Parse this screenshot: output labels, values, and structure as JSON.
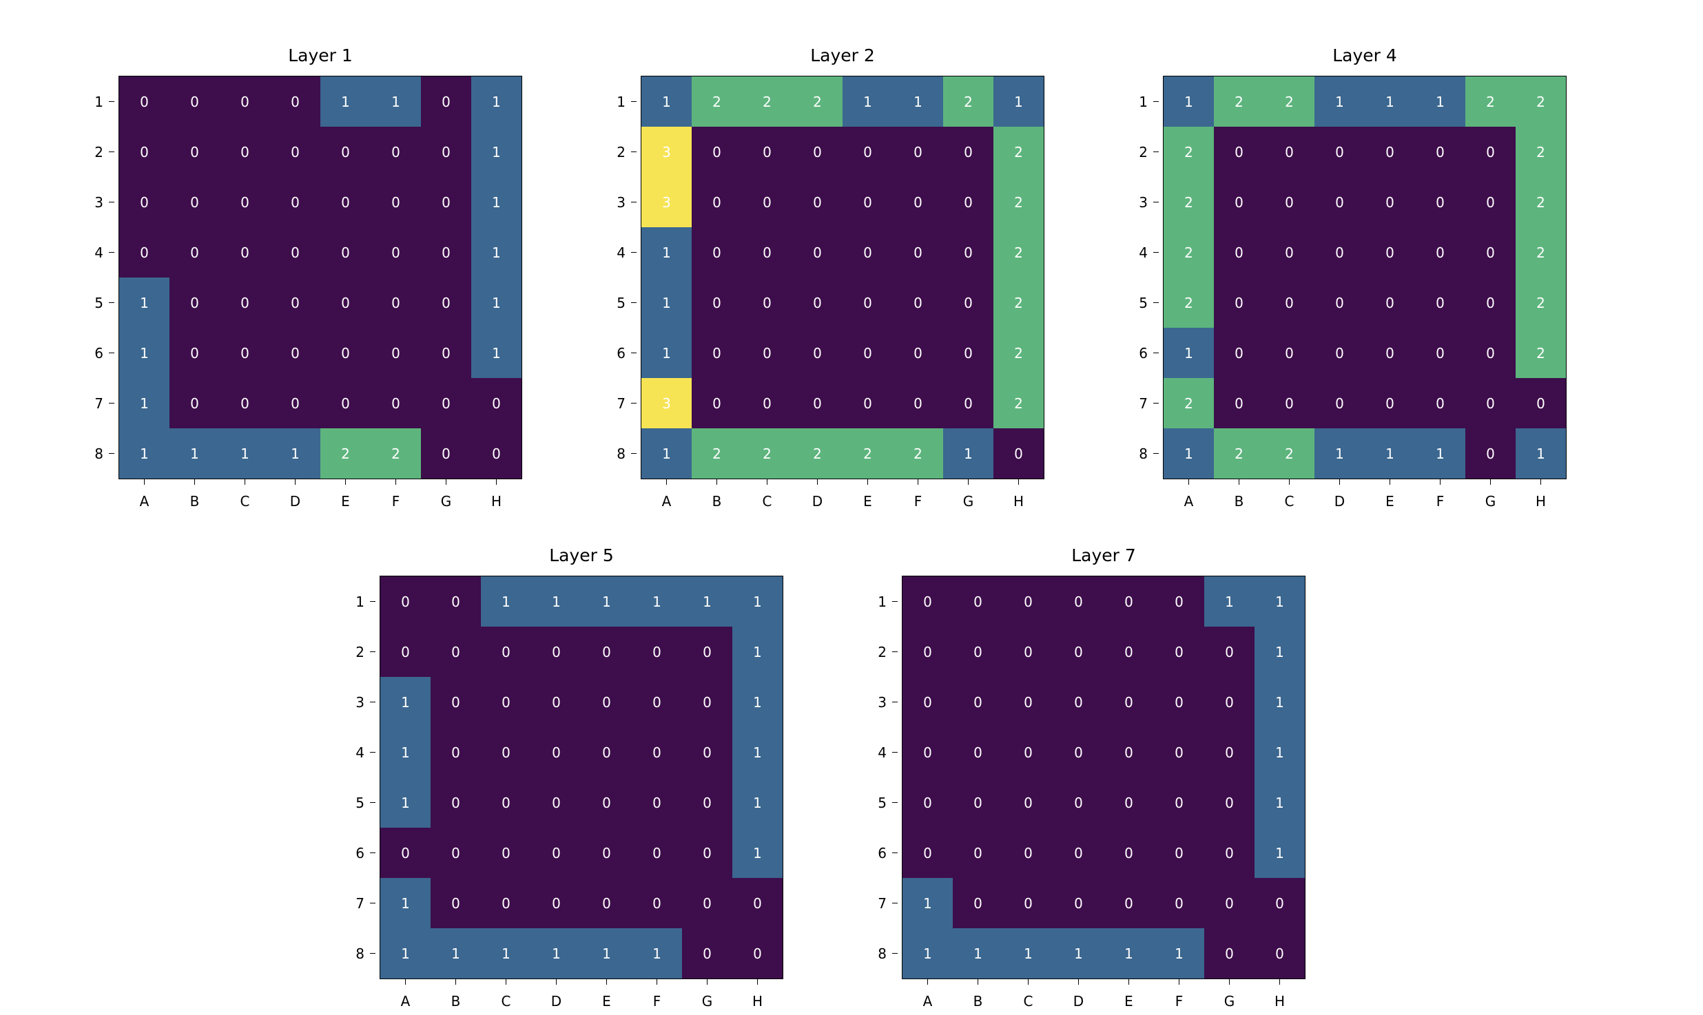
{
  "chart_data": [
    {
      "type": "heatmap",
      "title": "Layer 1",
      "x_categories": [
        "A",
        "B",
        "C",
        "D",
        "E",
        "F",
        "G",
        "H"
      ],
      "y_categories": [
        "1",
        "2",
        "3",
        "4",
        "5",
        "6",
        "7",
        "8"
      ],
      "values": [
        [
          0,
          0,
          0,
          0,
          1,
          1,
          0,
          1
        ],
        [
          0,
          0,
          0,
          0,
          0,
          0,
          0,
          1
        ],
        [
          0,
          0,
          0,
          0,
          0,
          0,
          0,
          1
        ],
        [
          0,
          0,
          0,
          0,
          0,
          0,
          0,
          1
        ],
        [
          1,
          0,
          0,
          0,
          0,
          0,
          0,
          1
        ],
        [
          1,
          0,
          0,
          0,
          0,
          0,
          0,
          1
        ],
        [
          1,
          0,
          0,
          0,
          0,
          0,
          0,
          0
        ],
        [
          1,
          1,
          1,
          1,
          2,
          2,
          0,
          0
        ]
      ]
    },
    {
      "type": "heatmap",
      "title": "Layer 2",
      "x_categories": [
        "A",
        "B",
        "C",
        "D",
        "E",
        "F",
        "G",
        "H"
      ],
      "y_categories": [
        "1",
        "2",
        "3",
        "4",
        "5",
        "6",
        "7",
        "8"
      ],
      "values": [
        [
          1,
          2,
          2,
          2,
          1,
          1,
          2,
          1
        ],
        [
          3,
          0,
          0,
          0,
          0,
          0,
          0,
          2
        ],
        [
          3,
          0,
          0,
          0,
          0,
          0,
          0,
          2
        ],
        [
          1,
          0,
          0,
          0,
          0,
          0,
          0,
          2
        ],
        [
          1,
          0,
          0,
          0,
          0,
          0,
          0,
          2
        ],
        [
          1,
          0,
          0,
          0,
          0,
          0,
          0,
          2
        ],
        [
          3,
          0,
          0,
          0,
          0,
          0,
          0,
          2
        ],
        [
          1,
          2,
          2,
          2,
          2,
          2,
          1,
          0
        ]
      ]
    },
    {
      "type": "heatmap",
      "title": "Layer 4",
      "x_categories": [
        "A",
        "B",
        "C",
        "D",
        "E",
        "F",
        "G",
        "H"
      ],
      "y_categories": [
        "1",
        "2",
        "3",
        "4",
        "5",
        "6",
        "7",
        "8"
      ],
      "values": [
        [
          1,
          2,
          2,
          1,
          1,
          1,
          2,
          2
        ],
        [
          2,
          0,
          0,
          0,
          0,
          0,
          0,
          2
        ],
        [
          2,
          0,
          0,
          0,
          0,
          0,
          0,
          2
        ],
        [
          2,
          0,
          0,
          0,
          0,
          0,
          0,
          2
        ],
        [
          2,
          0,
          0,
          0,
          0,
          0,
          0,
          2
        ],
        [
          1,
          0,
          0,
          0,
          0,
          0,
          0,
          2
        ],
        [
          2,
          0,
          0,
          0,
          0,
          0,
          0,
          0
        ],
        [
          1,
          2,
          2,
          1,
          1,
          1,
          0,
          1
        ]
      ]
    },
    {
      "type": "heatmap",
      "title": "Layer 5",
      "x_categories": [
        "A",
        "B",
        "C",
        "D",
        "E",
        "F",
        "G",
        "H"
      ],
      "y_categories": [
        "1",
        "2",
        "3",
        "4",
        "5",
        "6",
        "7",
        "8"
      ],
      "values": [
        [
          0,
          0,
          1,
          1,
          1,
          1,
          1,
          1
        ],
        [
          0,
          0,
          0,
          0,
          0,
          0,
          0,
          1
        ],
        [
          1,
          0,
          0,
          0,
          0,
          0,
          0,
          1
        ],
        [
          1,
          0,
          0,
          0,
          0,
          0,
          0,
          1
        ],
        [
          1,
          0,
          0,
          0,
          0,
          0,
          0,
          1
        ],
        [
          0,
          0,
          0,
          0,
          0,
          0,
          0,
          1
        ],
        [
          1,
          0,
          0,
          0,
          0,
          0,
          0,
          0
        ],
        [
          1,
          1,
          1,
          1,
          1,
          1,
          0,
          0
        ]
      ]
    },
    {
      "type": "heatmap",
      "title": "Layer 7",
      "x_categories": [
        "A",
        "B",
        "C",
        "D",
        "E",
        "F",
        "G",
        "H"
      ],
      "y_categories": [
        "1",
        "2",
        "3",
        "4",
        "5",
        "6",
        "7",
        "8"
      ],
      "values": [
        [
          0,
          0,
          0,
          0,
          0,
          0,
          1,
          1
        ],
        [
          0,
          0,
          0,
          0,
          0,
          0,
          0,
          1
        ],
        [
          0,
          0,
          0,
          0,
          0,
          0,
          0,
          1
        ],
        [
          0,
          0,
          0,
          0,
          0,
          0,
          0,
          1
        ],
        [
          0,
          0,
          0,
          0,
          0,
          0,
          0,
          1
        ],
        [
          0,
          0,
          0,
          0,
          0,
          0,
          0,
          1
        ],
        [
          1,
          0,
          0,
          0,
          0,
          0,
          0,
          0
        ],
        [
          1,
          1,
          1,
          1,
          1,
          1,
          0,
          0
        ]
      ]
    }
  ],
  "colors": {
    "0": "#3e0d4b",
    "1": "#3b6790",
    "2": "#5db57d",
    "3": "#f7e455"
  }
}
